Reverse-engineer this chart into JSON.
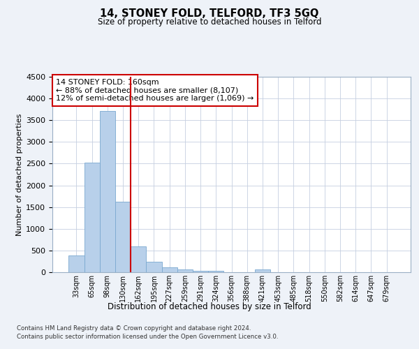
{
  "title": "14, STONEY FOLD, TELFORD, TF3 5GQ",
  "subtitle": "Size of property relative to detached houses in Telford",
  "xlabel": "Distribution of detached houses by size in Telford",
  "ylabel": "Number of detached properties",
  "categories": [
    "33sqm",
    "65sqm",
    "98sqm",
    "130sqm",
    "162sqm",
    "195sqm",
    "227sqm",
    "259sqm",
    "291sqm",
    "324sqm",
    "356sqm",
    "388sqm",
    "421sqm",
    "453sqm",
    "485sqm",
    "518sqm",
    "550sqm",
    "582sqm",
    "614sqm",
    "647sqm",
    "679sqm"
  ],
  "values": [
    380,
    2520,
    3720,
    1630,
    600,
    245,
    110,
    60,
    40,
    40,
    0,
    0,
    60,
    0,
    0,
    0,
    0,
    0,
    0,
    0,
    0
  ],
  "bar_color": "#b8d0ea",
  "bar_edgecolor": "#7aa8d0",
  "vline_color": "#cc0000",
  "vline_index": 3.5,
  "annotation_text": "14 STONEY FOLD: 160sqm\n← 88% of detached houses are smaller (8,107)\n12% of semi-detached houses are larger (1,069) →",
  "annotation_box_edgecolor": "#cc0000",
  "ylim": [
    0,
    4500
  ],
  "yticks": [
    0,
    500,
    1000,
    1500,
    2000,
    2500,
    3000,
    3500,
    4000,
    4500
  ],
  "footer_line1": "Contains HM Land Registry data © Crown copyright and database right 2024.",
  "footer_line2": "Contains public sector information licensed under the Open Government Licence v3.0.",
  "bg_color": "#eef2f8",
  "plot_bg_color": "#ffffff",
  "grid_color": "#c5cfe0"
}
